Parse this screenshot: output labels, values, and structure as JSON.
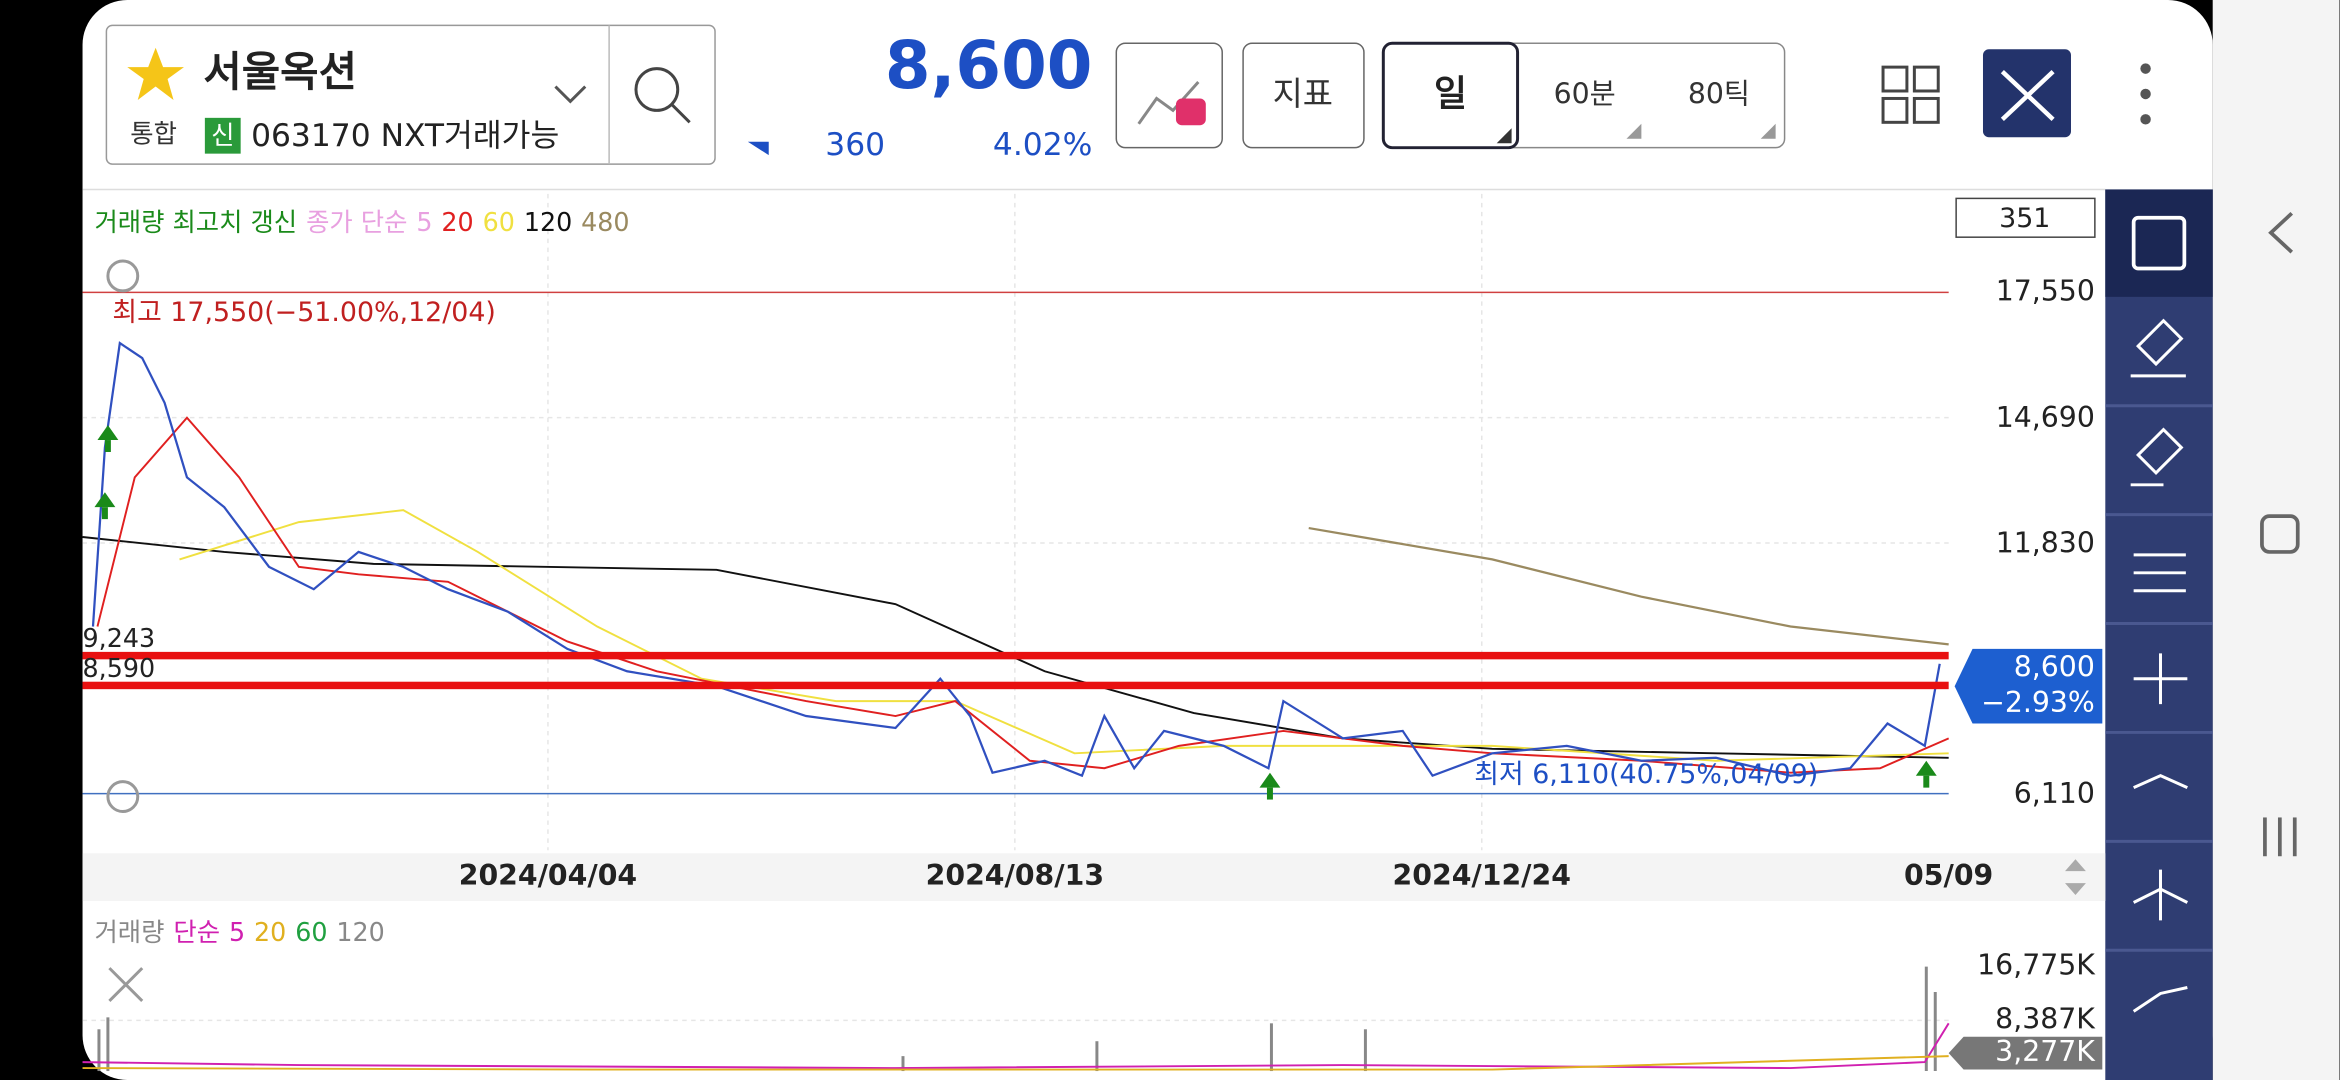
{
  "header": {
    "stock_name": "서울옥션",
    "market": "통합",
    "credit": "신",
    "code_line": "063170 NXT거래가능",
    "price": "8,600",
    "change": "360",
    "change_pct": "4.02%",
    "buttons": [
      "지표",
      "일",
      "60분",
      "80틱"
    ]
  },
  "price_chart": {
    "legend": [
      {
        "text": "거래량 최고치 갱신",
        "color": "#1a8a1a"
      },
      {
        "text": "종가 단순",
        "color": "#e8a0e0"
      },
      {
        "text": "5",
        "color": "#e8a0e0"
      },
      {
        "text": "20",
        "color": "#e02020"
      },
      {
        "text": "60",
        "color": "#f0e040"
      },
      {
        "text": "120",
        "color": "#111111"
      },
      {
        "text": "480",
        "color": "#9a8a60"
      }
    ],
    "count": "351",
    "high_label": "최고 17,550(−51.00%,12/04)",
    "low_label": "최저 6,110(40.75%,04/09)",
    "y_labels": [
      "17,550",
      "14,690",
      "11,830",
      "6,110"
    ],
    "current_price": "8,600",
    "current_change": "−2.93%",
    "line_labels": [
      "9,243",
      "8,590"
    ],
    "x_labels": [
      "2024/04/04",
      "2024/08/13",
      "2024/12/24",
      "05/09"
    ]
  },
  "volume_chart": {
    "legend": [
      {
        "text": "거래량",
        "color": "#888888"
      },
      {
        "text": "단순",
        "color": "#d020b0"
      },
      {
        "text": "5",
        "color": "#d020b0"
      },
      {
        "text": "20",
        "color": "#e0b020"
      },
      {
        "text": "60",
        "color": "#20a040"
      },
      {
        "text": "120",
        "color": "#888888"
      }
    ],
    "y_labels": [
      "16,775K",
      "8,387K"
    ],
    "current_volume": "3,277K"
  }
}
